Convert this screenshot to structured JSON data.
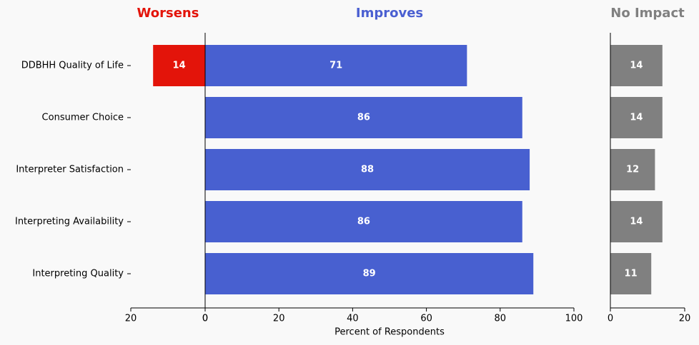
{
  "chart_data": [
    {
      "type": "bar",
      "orientation": "horizontal",
      "title": "Worsens",
      "title_color": "#e3140a",
      "categories": [
        "DDBHH Quality of Life",
        "Consumer Choice",
        "Interpreter Satisfaction",
        "Interpreting Availability",
        "Interpreting Quality"
      ],
      "values": [
        14,
        null,
        null,
        null,
        null
      ],
      "color": "#e3140a",
      "xlim": [
        20,
        0
      ],
      "xticks": [
        20,
        0
      ]
    },
    {
      "type": "bar",
      "orientation": "horizontal",
      "title": "Improves",
      "title_color": "#4a5fd1",
      "xlabel": "Percent of Respondents",
      "values": [
        71,
        86,
        88,
        86,
        89
      ],
      "color": "#4860d0",
      "xlim": [
        0,
        100
      ],
      "xticks": [
        0,
        20,
        40,
        60,
        80,
        100
      ]
    },
    {
      "type": "bar",
      "orientation": "horizontal",
      "title": "No Impact",
      "title_color": "#808080",
      "values": [
        14,
        14,
        12,
        14,
        11
      ],
      "color": "#808080",
      "xlim": [
        0,
        20
      ],
      "xticks": [
        0,
        20
      ]
    }
  ]
}
